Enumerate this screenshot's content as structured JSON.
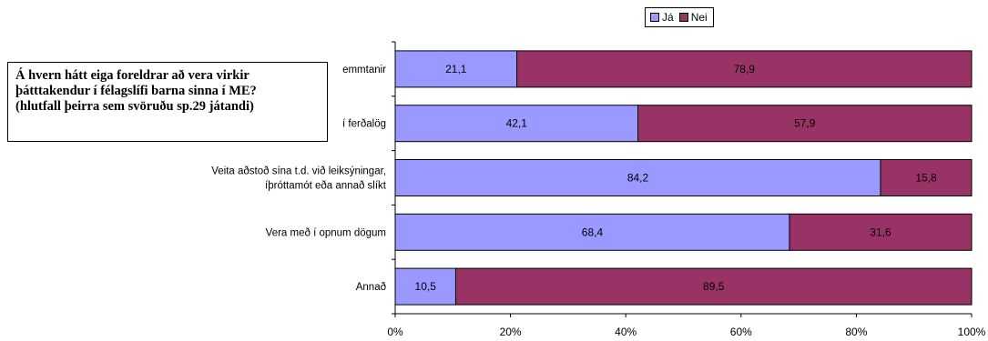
{
  "chart_data": {
    "type": "bar",
    "orientation": "horizontal",
    "stacked": "percent",
    "title_lines": [
      "Á hvern hátt eiga foreldrar að vera virkir",
      "þátttakendur í félagslífi barna sinna í ME?",
      "(hlutfall þeirra sem svöruðu sp.29 játandi)"
    ],
    "categories": [
      [
        "emmtanir"
      ],
      [
        "í ferðalög"
      ],
      [
        "Veita aðstoð sína t.d. við leiksýningar,",
        "íþróttamót eða annað slíkt"
      ],
      [
        "Vera með í opnum dögum"
      ],
      [
        "Annað"
      ]
    ],
    "series": [
      {
        "name": "Já",
        "color": "#9999ff",
        "values": [
          21.1,
          42.1,
          84.2,
          68.4,
          10.5
        ],
        "labels": [
          "21,1",
          "42,1",
          "84,2",
          "68,4",
          "10,5"
        ]
      },
      {
        "name": "Nei",
        "color": "#993366",
        "values": [
          78.9,
          57.9,
          15.8,
          31.6,
          89.5
        ],
        "labels": [
          "78,9",
          "57,9",
          "15,8",
          "31,6",
          "89,5"
        ]
      }
    ],
    "xlim": [
      0,
      100
    ],
    "xticks": [
      "0%",
      "20%",
      "40%",
      "60%",
      "80%",
      "100%"
    ],
    "legend_position": "top",
    "grid": false
  }
}
